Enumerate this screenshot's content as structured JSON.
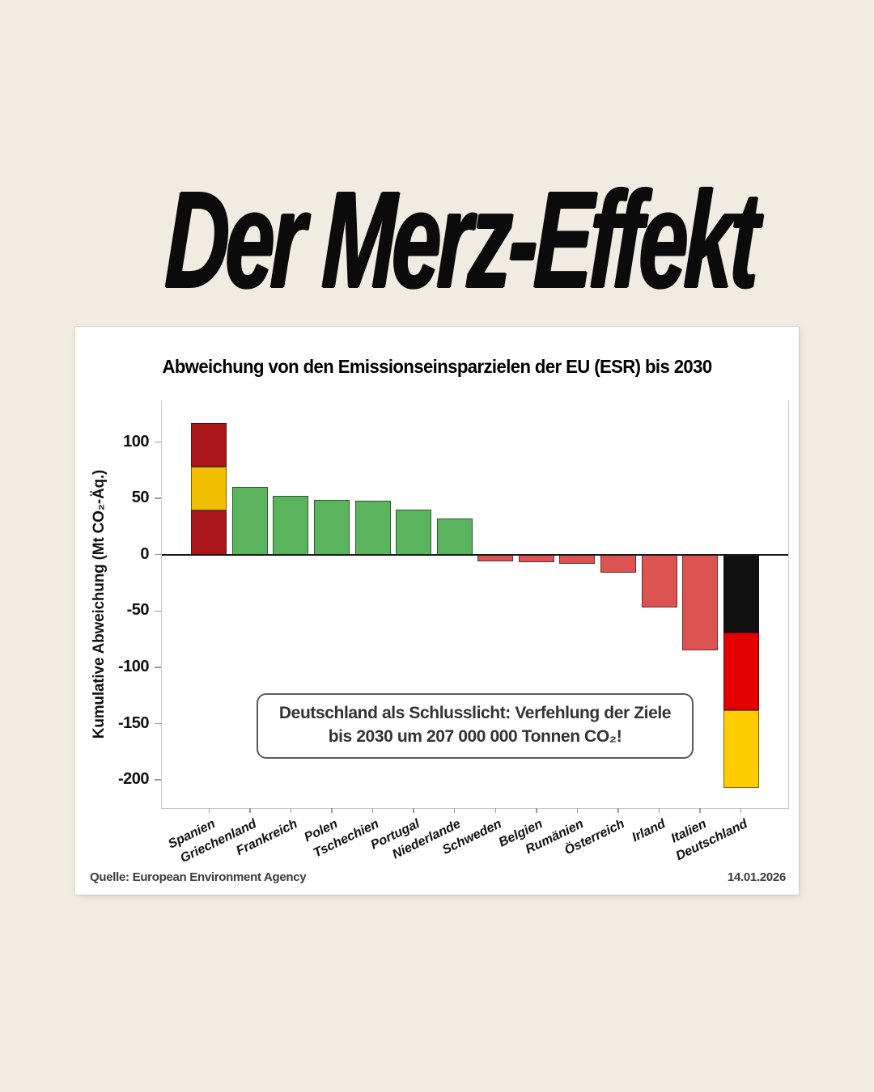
{
  "page": {
    "background": "#F1ECE2",
    "card_background": "#FFFFFF"
  },
  "header": {
    "title": "Der Merz-Effekt"
  },
  "chart": {
    "title": "Abweichung von den Emissionseinsparzielen der EU (ESR) bis 2030",
    "ylabel": "Kumulative Abweichung (Mt CO₂-Äq.)",
    "annotation": {
      "line1": "Deutschland als Schlusslicht: Verfehlung der Ziele",
      "line2": "bis 2030 um 207 000 000 Tonnen CO₂!"
    },
    "source": "Quelle: European Environment Agency",
    "date": "14.01.2026"
  },
  "chart_data": {
    "type": "bar",
    "title": "Abweichung von den Emissionseinsparzielen der EU (ESR) bis 2030",
    "xlabel": "",
    "ylabel": "Kumulative Abweichung (Mt CO₂-Äq.)",
    "ylim": [
      -225,
      137
    ],
    "yticks": [
      100,
      50,
      0,
      -50,
      -100,
      -150,
      -200
    ],
    "grid": false,
    "legend": false,
    "zero_line": true,
    "categories": [
      "Spanien",
      "Griechenland",
      "Frankreich",
      "Polen",
      "Tschechien",
      "Portugal",
      "Niederlande",
      "Schweden",
      "Belgien",
      "Rumänien",
      "Österreich",
      "Irland",
      "Italien",
      "Deutschland"
    ],
    "values": [
      117,
      60,
      52,
      49,
      48,
      40,
      32,
      -6,
      -7,
      -8,
      -16,
      -47,
      -85,
      -207
    ],
    "bars": [
      {
        "label": "Spanien",
        "value": 117,
        "segments": [
          {
            "v": 39,
            "color": "#AA151B"
          },
          {
            "v": 39,
            "color": "#F1BF00"
          },
          {
            "v": 39,
            "color": "#AA151B"
          }
        ]
      },
      {
        "label": "Griechenland",
        "value": 60,
        "color": "#5AB45E"
      },
      {
        "label": "Frankreich",
        "value": 52,
        "color": "#5AB45E"
      },
      {
        "label": "Polen",
        "value": 49,
        "color": "#5AB45E"
      },
      {
        "label": "Tschechien",
        "value": 48,
        "color": "#5AB45E"
      },
      {
        "label": "Portugal",
        "value": 40,
        "color": "#5AB45E"
      },
      {
        "label": "Niederlande",
        "value": 32,
        "color": "#5AB45E"
      },
      {
        "label": "Schweden",
        "value": -6,
        "color": "#DC5351"
      },
      {
        "label": "Belgien",
        "value": -7,
        "color": "#DC5351"
      },
      {
        "label": "Rumänien",
        "value": -8,
        "color": "#DC5351"
      },
      {
        "label": "Österreich",
        "value": -16,
        "color": "#DC5351"
      },
      {
        "label": "Irland",
        "value": -47,
        "color": "#DC5351"
      },
      {
        "label": "Italien",
        "value": -85,
        "color": "#DC5351"
      },
      {
        "label": "Deutschland",
        "value": -207,
        "segments": [
          {
            "v": -69,
            "color": "#111111"
          },
          {
            "v": -69,
            "color": "#E30000"
          },
          {
            "v": -69,
            "color": "#FFCC00"
          }
        ]
      }
    ],
    "colors": {
      "positive": "#5AB45E",
      "negative": "#DC5351",
      "spain_flag": [
        "#AA151B",
        "#F1BF00"
      ],
      "germany_flag": [
        "#111111",
        "#E30000",
        "#FFCC00"
      ]
    }
  }
}
